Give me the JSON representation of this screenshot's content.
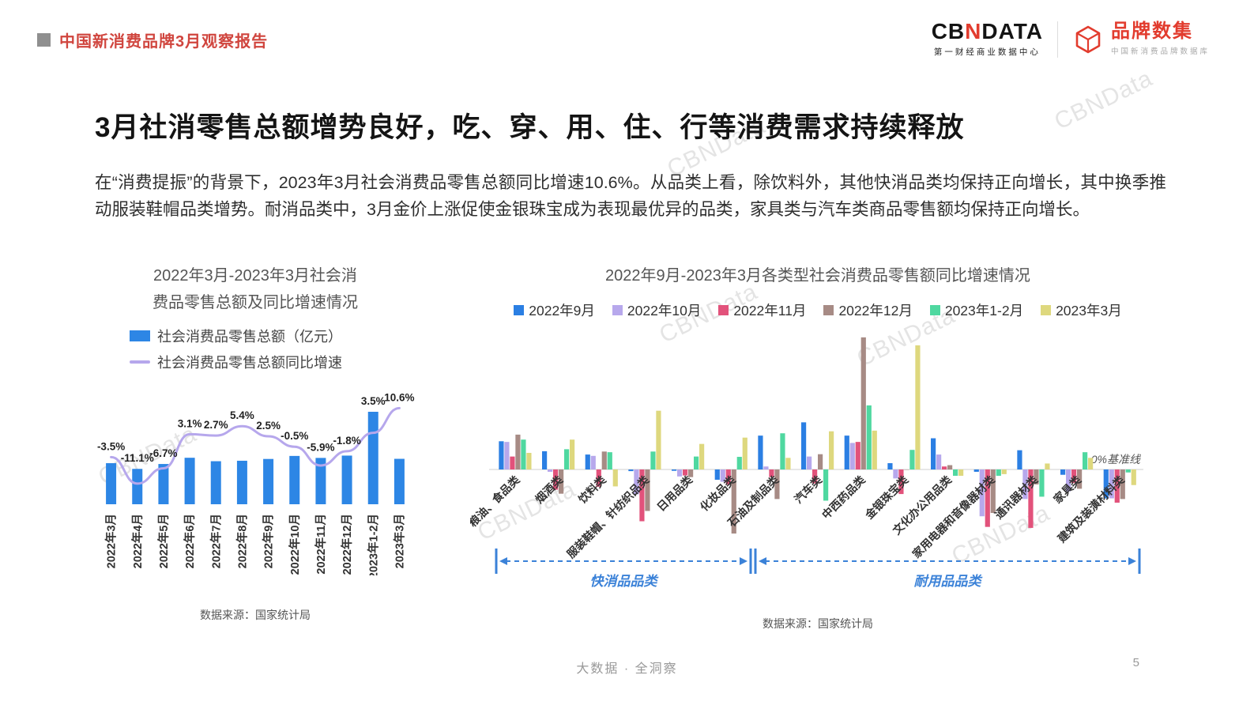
{
  "page": {
    "report_title": "中国新消费品牌3月观察报告",
    "slide_title": "3月社消零售总额增势良好，吃、穿、用、住、行等消费需求持续释放",
    "body_text": "在“消费提振”的背景下，2023年3月社会消费品零售总额同比增速10.6%。从品类上看，除饮料外，其他快消品类均保持正向增长，其中换季推动服装鞋帽品类增势。耐消品类中，3月金价上涨促使金银珠宝成为表现最优异的品类，家具类与汽车类商品零售额均保持正向增长。",
    "footer": "大数据 · 全洞察",
    "page_number": "5",
    "watermark": "CBNData"
  },
  "logos": {
    "cbn_part1": "CB",
    "cbn_accent": "N",
    "cbn_part2": "DATA",
    "cbn_sub": "第一财经商业数据中心",
    "brand_name": "品牌数集",
    "brand_sub": "中国新消费品牌数据库"
  },
  "colors": {
    "accent_red": "#e23c2e",
    "header_red": "#d0453e",
    "arrow_blue": "#3b82d8",
    "bar_blue": "#2d86e5",
    "line_lavender": "#b6a7ec"
  },
  "chart_data": [
    {
      "type": "bar",
      "title": "2022年3月-2023年3月社会消费品零售总额及同比增速情况",
      "title_lines": [
        "2022年3月-2023年3月社会消",
        "费品零售总额及同比增速情况"
      ],
      "categories": [
        "2022年3月",
        "2022年4月",
        "2022年5月",
        "2022年6月",
        "2022年7月",
        "2022年8月",
        "2022年9月",
        "2022年10月",
        "2022年11月",
        "2022年12月",
        "2023年1-2月",
        "2023年3月"
      ],
      "series": [
        {
          "name": "社会消费品零售总额（亿元）",
          "kind": "bar",
          "color": "#2d86e5",
          "values": [
            34233,
            29483,
            33547,
            38742,
            35870,
            36258,
            37745,
            40271,
            38615,
            40542,
            77067,
            37855
          ]
        },
        {
          "name": "社会消费品零售总额同比增速",
          "kind": "line",
          "color": "#b6a7ec",
          "values": [
            -3.5,
            -11.1,
            -6.7,
            3.1,
            2.7,
            5.4,
            2.5,
            -0.5,
            -5.9,
            -1.8,
            3.5,
            10.6
          ],
          "labels": [
            "-3.5%",
            "-11.1%",
            "-6.7%",
            "3.1%",
            "2.7%",
            "5.4%",
            "2.5%",
            "-0.5%",
            "-5.9%",
            "-1.8%",
            "3.5%",
            "10.6%"
          ]
        }
      ],
      "legend_position": "top",
      "grid": false,
      "source": "数据来源：国家统计局"
    },
    {
      "type": "bar",
      "title": "2022年9月-2023年3月各类型社会消费品零售额同比增速情况",
      "categories": [
        "粮油、食品类",
        "烟酒类",
        "饮料类",
        "服装鞋帽、针纺织品类",
        "日用品类",
        "化妆品类",
        "石油及制品类",
        "汽车类",
        "中西药品类",
        "金银珠宝类",
        "文化办公用品类",
        "家用电器和音像器材类",
        "通讯器材类",
        "家具类",
        "建筑及装潢材料类"
      ],
      "series": [
        {
          "name": "2022年9月",
          "color": "#2b7fe3",
          "values": [
            8.5,
            5.5,
            4.5,
            -0.5,
            -0.4,
            -3.1,
            10.2,
            14.2,
            10.2,
            1.9,
            9.4,
            -0.7,
            5.8,
            -1.6,
            -8.7
          ]
        },
        {
          "name": "2022年10月",
          "color": "#b7a8ec",
          "values": [
            8.3,
            -0.7,
            4.1,
            -7.5,
            -2.1,
            -3.7,
            0.9,
            3.9,
            8.0,
            -2.7,
            4.5,
            -14.1,
            -8.9,
            -6.6,
            -8.7
          ]
        },
        {
          "name": "2022年11月",
          "color": "#e2527b",
          "values": [
            3.9,
            -6.1,
            -5.2,
            -15.6,
            -1.8,
            -4.6,
            -2.3,
            -4.2,
            8.3,
            -7.4,
            0.9,
            -17.3,
            -17.6,
            -4.1,
            -10.0
          ]
        },
        {
          "name": "2022年12月",
          "color": "#a78b85",
          "values": [
            10.5,
            -7.3,
            5.4,
            -12.5,
            -2.3,
            -19.3,
            -8.9,
            4.6,
            39.8,
            -0.1,
            1.3,
            -13.1,
            -4.5,
            -5.8,
            -8.9
          ]
        },
        {
          "name": "2023年1-2月",
          "color": "#4fd8a0",
          "values": [
            9.0,
            6.1,
            5.2,
            5.4,
            3.9,
            3.8,
            10.9,
            -9.4,
            19.3,
            5.9,
            -1.9,
            -1.9,
            -8.2,
            5.2,
            -0.9
          ]
        },
        {
          "name": "2023年3月",
          "color": "#ded87e",
          "values": [
            5.0,
            9.0,
            -5.1,
            17.7,
            7.7,
            9.6,
            3.5,
            11.5,
            11.7,
            37.4,
            -1.9,
            -1.4,
            1.8,
            3.5,
            -4.7
          ]
        }
      ],
      "ylim": [
        -25,
        45
      ],
      "grid": false,
      "legend_position": "top",
      "baseline_label": "0%基准线",
      "category_groups": [
        {
          "label": "快消品品类",
          "from": 0,
          "to": 5
        },
        {
          "label": "耐用品品类",
          "from": 6,
          "to": 14
        }
      ],
      "source": "数据来源：国家统计局"
    }
  ]
}
